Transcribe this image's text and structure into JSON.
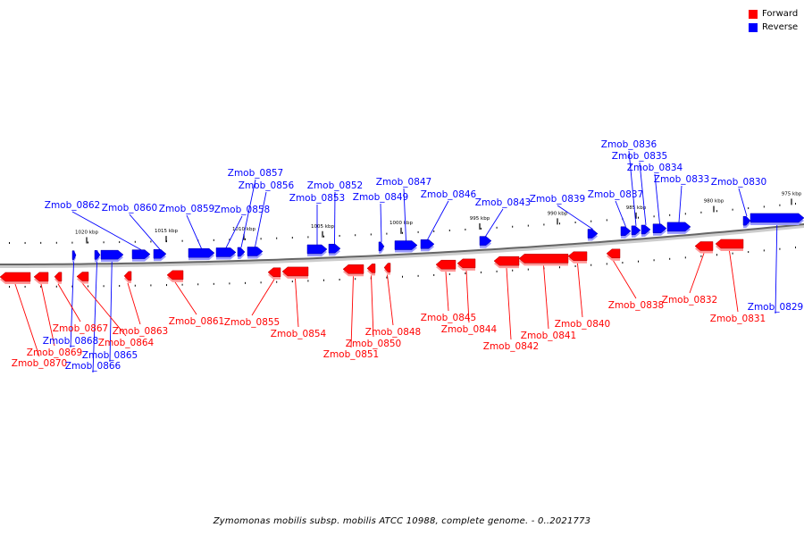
{
  "legend": {
    "forward_label": "Forward",
    "reverse_label": "Reverse",
    "forward_color": "#ff0000",
    "reverse_color": "#0000ff"
  },
  "caption": "Zymomonas mobilis subsp. mobilis ATCC 10988, complete genome. - 0..2021773",
  "scale_ticks": [
    {
      "label": "1020 kbp",
      "kbp": 1020
    },
    {
      "label": "1015 kbp",
      "kbp": 1015
    },
    {
      "label": "1010 kbp",
      "kbp": 1010
    },
    {
      "label": "1005 kbp",
      "kbp": 1005
    },
    {
      "label": "1000 kbp",
      "kbp": 1000
    },
    {
      "label": "995 kbp",
      "kbp": 995
    },
    {
      "label": "990 kbp",
      "kbp": 990
    },
    {
      "label": "985 kbp",
      "kbp": 985
    },
    {
      "label": "980 kbp",
      "kbp": 980
    },
    {
      "label": "975 kbp",
      "kbp": 975
    }
  ],
  "genes": [
    {
      "name": "Zmob_0870",
      "strand": "forward"
    },
    {
      "name": "Zmob_0869",
      "strand": "forward"
    },
    {
      "name": "Zmob_0868",
      "strand": "reverse"
    },
    {
      "name": "Zmob_0867",
      "strand": "forward"
    },
    {
      "name": "Zmob_0866",
      "strand": "reverse"
    },
    {
      "name": "Zmob_0865",
      "strand": "reverse"
    },
    {
      "name": "Zmob_0864",
      "strand": "forward"
    },
    {
      "name": "Zmob_0863",
      "strand": "forward"
    },
    {
      "name": "Zmob_0862",
      "strand": "reverse"
    },
    {
      "name": "Zmob_0861",
      "strand": "forward"
    },
    {
      "name": "Zmob_0860",
      "strand": "reverse"
    },
    {
      "name": "Zmob_0859",
      "strand": "reverse"
    },
    {
      "name": "Zmob_0858",
      "strand": "reverse"
    },
    {
      "name": "Zmob_0857",
      "strand": "reverse"
    },
    {
      "name": "Zmob_0856",
      "strand": "reverse"
    },
    {
      "name": "Zmob_0855",
      "strand": "forward"
    },
    {
      "name": "Zmob_0854",
      "strand": "forward"
    },
    {
      "name": "Zmob_0853",
      "strand": "reverse"
    },
    {
      "name": "Zmob_0852",
      "strand": "reverse"
    },
    {
      "name": "Zmob_0851",
      "strand": "forward"
    },
    {
      "name": "Zmob_0850",
      "strand": "forward"
    },
    {
      "name": "Zmob_0849",
      "strand": "reverse"
    },
    {
      "name": "Zmob_0848",
      "strand": "forward"
    },
    {
      "name": "Zmob_0847",
      "strand": "reverse"
    },
    {
      "name": "Zmob_0846",
      "strand": "reverse"
    },
    {
      "name": "Zmob_0845",
      "strand": "forward"
    },
    {
      "name": "Zmob_0844",
      "strand": "forward"
    },
    {
      "name": "Zmob_0843",
      "strand": "reverse"
    },
    {
      "name": "Zmob_0842",
      "strand": "forward"
    },
    {
      "name": "Zmob_0841",
      "strand": "forward"
    },
    {
      "name": "Zmob_0840",
      "strand": "forward"
    },
    {
      "name": "Zmob_0839",
      "strand": "reverse"
    },
    {
      "name": "Zmob_0838",
      "strand": "forward"
    },
    {
      "name": "Zmob_0837",
      "strand": "reverse"
    },
    {
      "name": "Zmob_0836",
      "strand": "reverse"
    },
    {
      "name": "Zmob_0835",
      "strand": "reverse"
    },
    {
      "name": "Zmob_0834",
      "strand": "reverse"
    },
    {
      "name": "Zmob_0833",
      "strand": "reverse"
    },
    {
      "name": "Zmob_0832",
      "strand": "forward"
    },
    {
      "name": "Zmob_0831",
      "strand": "forward"
    },
    {
      "name": "Zmob_0830",
      "strand": "reverse"
    },
    {
      "name": "Zmob_0829",
      "strand": "reverse"
    }
  ]
}
